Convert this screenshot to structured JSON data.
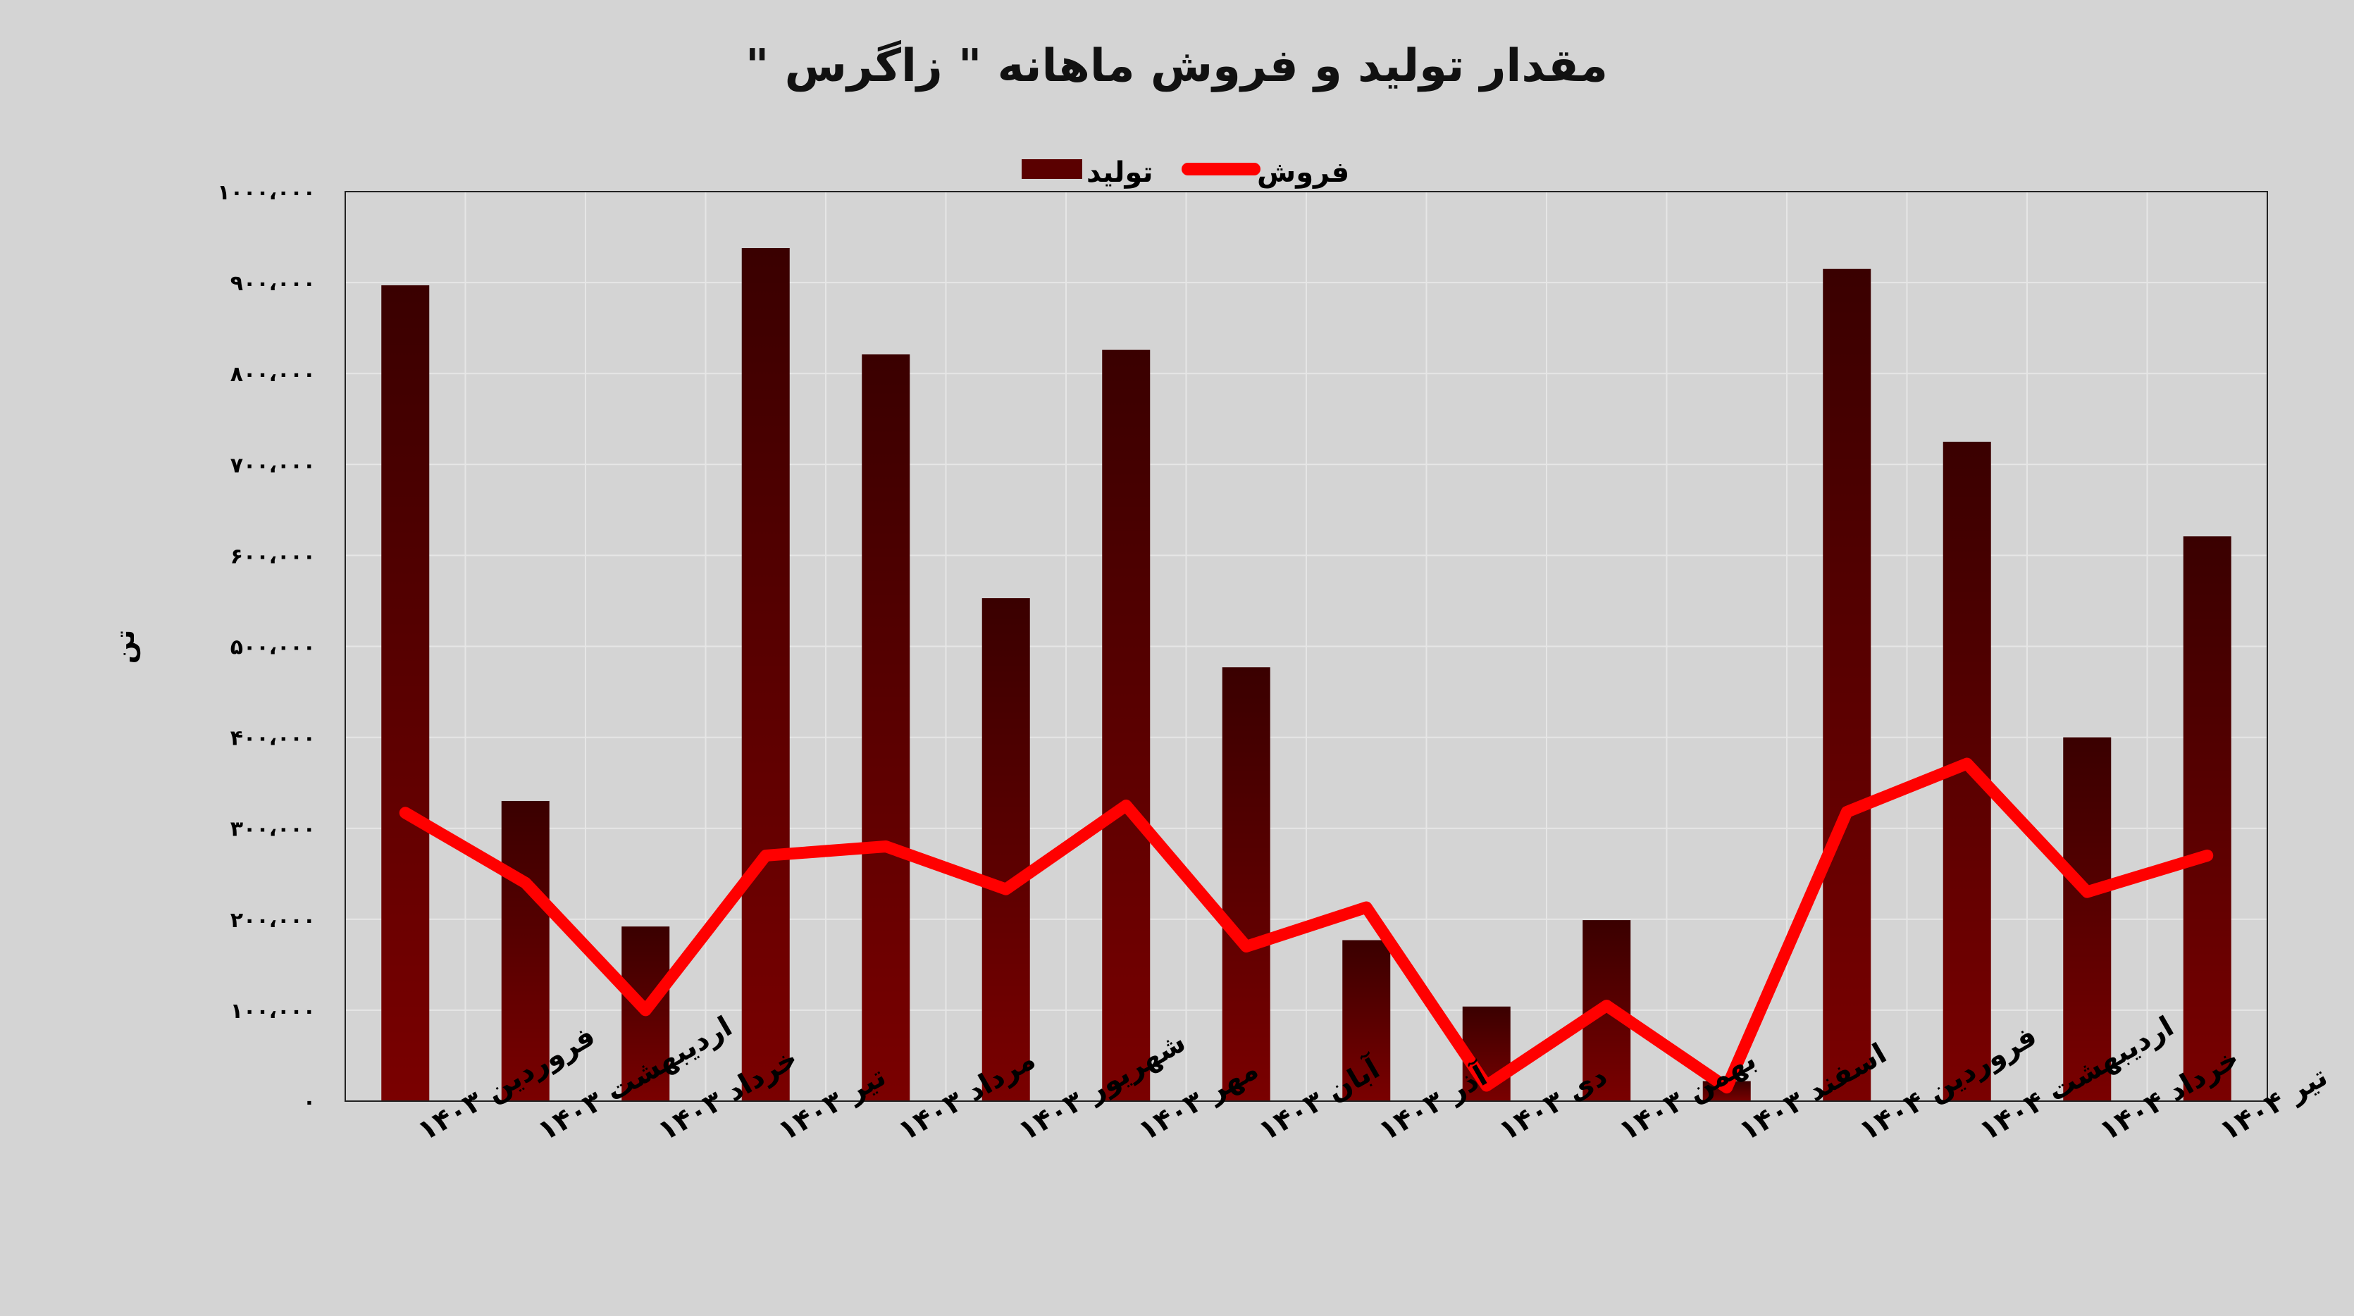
{
  "chart_data": {
    "type": "bar",
    "title": "مقدار تولید و فروش ماهانه \" زاگرس \"",
    "ylabel": "تن",
    "xlabel": "",
    "ylim": [
      0,
      1000000
    ],
    "y_ticks": [
      "۰",
      "۱۰۰،۰۰۰",
      "۲۰۰،۰۰۰",
      "۳۰۰،۰۰۰",
      "۴۰۰،۰۰۰",
      "۵۰۰،۰۰۰",
      "۶۰۰،۰۰۰",
      "۷۰۰،۰۰۰",
      "۸۰۰،۰۰۰",
      "۹۰۰،۰۰۰",
      "۱۰۰۰،۰۰۰"
    ],
    "y_tick_values": [
      0,
      100000,
      200000,
      300000,
      400000,
      500000,
      600000,
      700000,
      800000,
      900000,
      1000000
    ],
    "categories": [
      "فروردین ۱۴۰۳",
      "اردیبهشت ۱۴۰۳",
      "خرداد ۱۴۰۳",
      "تیر ۱۴۰۳",
      "مرداد ۱۴۰۳",
      "شهریور ۱۴۰۳",
      "مهر ۱۴۰۳",
      "آبان ۱۴۰۳",
      "آذر ۱۴۰۳",
      "دی ۱۴۰۳",
      "بهمن ۱۴۰۳",
      "اسفند ۱۴۰۳",
      "فروردین ۱۴۰۴",
      "اردیبهشت ۱۴۰۴",
      "خرداد ۱۴۰۴",
      "تیر ۱۴۰۴"
    ],
    "series": [
      {
        "name": "تولید",
        "type": "bar",
        "color": "#6e0000",
        "values": [
          897000,
          330000,
          192000,
          938000,
          821000,
          553000,
          826000,
          477000,
          177000,
          104000,
          199000,
          22000,
          915000,
          725000,
          400000,
          621000
        ]
      },
      {
        "name": "فروش",
        "type": "line",
        "color": "#ff0000",
        "values": [
          317000,
          240000,
          100000,
          270000,
          280000,
          233000,
          325000,
          170000,
          213000,
          17000,
          105000,
          15000,
          318000,
          371000,
          230000,
          270000
        ]
      }
    ],
    "legend": "top-center",
    "grid": true
  }
}
